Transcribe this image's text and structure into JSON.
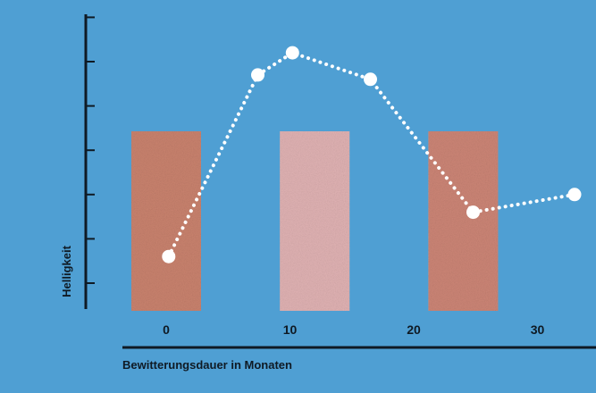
{
  "chart_data": {
    "type": "line",
    "title": "",
    "xlabel": "Bewitterungsdauer in Monaten",
    "ylabel": "Helligkeit",
    "x_ticks": [
      0,
      10,
      20,
      30
    ],
    "xlim": [
      -3,
      33
    ],
    "ylim": [
      0,
      7
    ],
    "y_tick_values": [
      1,
      2,
      3,
      4,
      5,
      6,
      7
    ],
    "series": [
      {
        "points": [
          {
            "x": 0.2,
            "y": 1.6
          },
          {
            "x": 7.4,
            "y": 5.7
          },
          {
            "x": 10.2,
            "y": 6.2
          },
          {
            "x": 16.5,
            "y": 5.6
          },
          {
            "x": 24.8,
            "y": 2.6
          },
          {
            "x": 33,
            "y": 3.0
          }
        ]
      }
    ],
    "samples": [
      {
        "month": 0,
        "color": "#c9826e"
      },
      {
        "month": 12,
        "color": "#e0b2b3"
      },
      {
        "month": 24,
        "color": "#cc8576"
      }
    ],
    "colors": {
      "background": "#4f9fd3",
      "line": "#ffffff",
      "axis": "#0f1a24"
    },
    "grid": false,
    "legend": "none"
  }
}
